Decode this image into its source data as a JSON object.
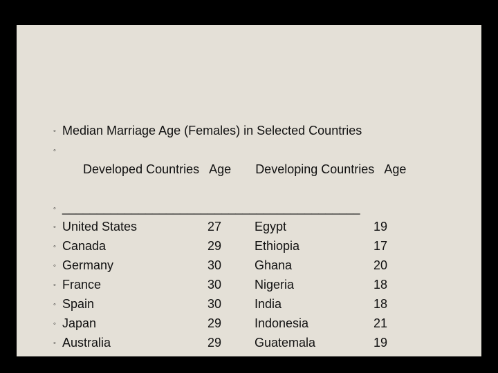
{
  "slide": {
    "background_color": "#e4e0d7",
    "outer_background": "#000000",
    "text_color": "#111111",
    "font_size_pt": 14,
    "bullet_glyph": "◦",
    "title": "Median Marriage Age (Females) in Selected Countries",
    "header": {
      "col1": "Developed Countries",
      "col2": "Age",
      "col3": "Developing Countries",
      "col4": "Age"
    },
    "divider": "___________________________________________",
    "rows": [
      {
        "developed": "United States",
        "age1": "27",
        "developing": "Egypt",
        "age2": "19"
      },
      {
        "developed": "Canada",
        "age1": "29",
        "developing": "Ethiopia",
        "age2": "17"
      },
      {
        "developed": "Germany",
        "age1": "30",
        "developing": "Ghana",
        "age2": "20"
      },
      {
        "developed": "France",
        "age1": "30",
        "developing": "Nigeria",
        "age2": "18"
      },
      {
        "developed": "Spain",
        "age1": "30",
        "developing": "India",
        "age2": "18"
      },
      {
        "developed": "Japan",
        "age1": "29",
        "developing": "Indonesia",
        "age2": "21"
      },
      {
        "developed": "Australia",
        "age1": "29",
        "developing": "Guatemala",
        "age2": "19"
      }
    ]
  }
}
